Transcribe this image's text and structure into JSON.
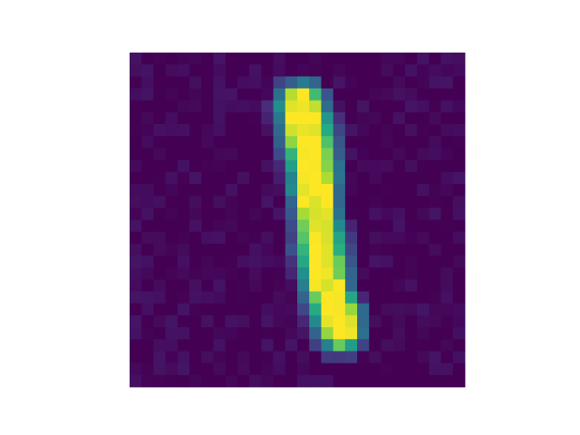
{
  "chart_data": {
    "type": "heatmap",
    "title": "",
    "xlabel": "",
    "ylabel": "",
    "grid": false,
    "axes_visible": false,
    "colormap": "viridis",
    "rows": 28,
    "cols": 28,
    "value_range": [
      0,
      1
    ],
    "noise_level": 0.06,
    "stroke_path": [
      [
        4.5,
        14.3
      ],
      [
        7.0,
        14.9
      ],
      [
        10.0,
        15.3
      ],
      [
        13.0,
        15.6
      ],
      [
        16.0,
        15.9
      ],
      [
        18.5,
        16.2
      ],
      [
        20.5,
        16.8
      ],
      [
        22.0,
        17.3
      ],
      [
        23.2,
        17.6
      ]
    ],
    "stroke_width": [
      1.9,
      2.0,
      1.9,
      1.8,
      1.8,
      1.8,
      1.7,
      1.9,
      1.7
    ],
    "colors": {
      "low": "#440154",
      "high": "#fde725",
      "background": "#ffffff"
    }
  }
}
